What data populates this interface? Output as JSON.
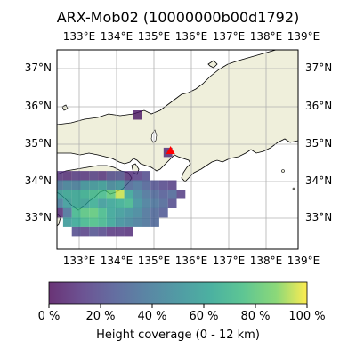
{
  "map": {
    "title": "ARX-Mob02 (10000000b00d1792)",
    "lon_labels": [
      "133°E",
      "134°E",
      "135°E",
      "136°E",
      "137°E",
      "138°E",
      "139°E"
    ],
    "lat_labels": [
      "37°N",
      "36°N",
      "35°N",
      "34°N",
      "33°N"
    ],
    "extent": {
      "lon_min": 132.95,
      "lon_max": 139.85,
      "lat_min": 32.15,
      "lat_max": 37.5
    },
    "colors": {
      "land": "#efefdb",
      "sea": "#ffffff",
      "grid": "#b0b0b0",
      "marker": "#ff0000"
    },
    "marker": {
      "lon": 136.2,
      "lat": 34.8,
      "shape": "triangle"
    },
    "colorbar": {
      "label": "Height coverage (0 - 12 km)",
      "ticks": [
        "0 %",
        "20 %",
        "40 %",
        "60 %",
        "80 %",
        "100 %"
      ],
      "colormap": "viridis"
    },
    "cell_size_deg": 0.25,
    "cells": [
      [
        135.25,
        35.75,
        0.05
      ],
      [
        136.125,
        34.75,
        0.1
      ],
      [
        133,
        34.125,
        0.12
      ],
      [
        133.25,
        34.125,
        0.1
      ],
      [
        133.5,
        34.125,
        0.14
      ],
      [
        133.75,
        34.125,
        0.12
      ],
      [
        134,
        34.125,
        0.15
      ],
      [
        134.25,
        34.125,
        0.12
      ],
      [
        134.5,
        34.125,
        0.2
      ],
      [
        134.75,
        34.125,
        0.22
      ],
      [
        135,
        34.125,
        0.1
      ],
      [
        135.25,
        34.125,
        0.14
      ],
      [
        135.5,
        34.125,
        0.2
      ],
      [
        133,
        33.875,
        0.35
      ],
      [
        133.25,
        33.875,
        0.42
      ],
      [
        133.5,
        33.875,
        0.4
      ],
      [
        133.75,
        33.875,
        0.5
      ],
      [
        134,
        33.875,
        0.52
      ],
      [
        134.25,
        33.875,
        0.55
      ],
      [
        134.5,
        33.875,
        0.45
      ],
      [
        134.75,
        33.875,
        0.5
      ],
      [
        135,
        33.875,
        0.3
      ],
      [
        135.25,
        33.875,
        0.35
      ],
      [
        135.5,
        33.875,
        0.28
      ],
      [
        135.75,
        33.875,
        0.22
      ],
      [
        136,
        33.875,
        0.18
      ],
      [
        136.25,
        33.875,
        0.15
      ],
      [
        133,
        33.625,
        0.55
      ],
      [
        133.25,
        33.625,
        0.6
      ],
      [
        133.5,
        33.625,
        0.6
      ],
      [
        133.75,
        33.625,
        0.65
      ],
      [
        134,
        33.625,
        0.7
      ],
      [
        134.25,
        33.625,
        0.72
      ],
      [
        134.5,
        33.625,
        0.8
      ],
      [
        134.75,
        33.625,
        0.95
      ],
      [
        135,
        33.625,
        0.6
      ],
      [
        135.25,
        33.625,
        0.45
      ],
      [
        135.5,
        33.625,
        0.35
      ],
      [
        135.75,
        33.625,
        0.3
      ],
      [
        136,
        33.625,
        0.25
      ],
      [
        136.25,
        33.625,
        0.3
      ],
      [
        136.5,
        33.625,
        0.15
      ],
      [
        133,
        33.375,
        0.4
      ],
      [
        133.25,
        33.375,
        0.55
      ],
      [
        133.5,
        33.375,
        0.6
      ],
      [
        133.75,
        33.375,
        0.58
      ],
      [
        134,
        33.375,
        0.65
      ],
      [
        134.25,
        33.375,
        0.55
      ],
      [
        134.5,
        33.375,
        0.6
      ],
      [
        134.75,
        33.375,
        0.65
      ],
      [
        135,
        33.375,
        0.7
      ],
      [
        135.25,
        33.375,
        0.5
      ],
      [
        135.5,
        33.375,
        0.4
      ],
      [
        135.75,
        33.375,
        0.35
      ],
      [
        136,
        33.375,
        0.3
      ],
      [
        136.25,
        33.375,
        0.2
      ],
      [
        133,
        33.125,
        0.08
      ],
      [
        133.25,
        33.125,
        0.35
      ],
      [
        133.5,
        33.125,
        0.7
      ],
      [
        133.75,
        33.125,
        0.78
      ],
      [
        134,
        33.125,
        0.8
      ],
      [
        134.25,
        33.125,
        0.72
      ],
      [
        134.5,
        33.125,
        0.6
      ],
      [
        134.75,
        33.125,
        0.55
      ],
      [
        135,
        33.125,
        0.5
      ],
      [
        135.25,
        33.125,
        0.45
      ],
      [
        135.5,
        33.125,
        0.35
      ],
      [
        135.75,
        33.125,
        0.3
      ],
      [
        136,
        33.125,
        0.25
      ],
      [
        133.25,
        32.875,
        0.55
      ],
      [
        133.5,
        32.875,
        0.62
      ],
      [
        133.75,
        32.875,
        0.7
      ],
      [
        134,
        32.875,
        0.75
      ],
      [
        134.25,
        32.875,
        0.7
      ],
      [
        134.5,
        32.875,
        0.6
      ],
      [
        134.75,
        32.875,
        0.5
      ],
      [
        135,
        32.875,
        0.45
      ],
      [
        135.25,
        32.875,
        0.4
      ],
      [
        135.5,
        32.875,
        0.35
      ],
      [
        135.75,
        32.875,
        0.3
      ],
      [
        133.5,
        32.625,
        0.2
      ],
      [
        133.75,
        32.625,
        0.15
      ],
      [
        134,
        32.625,
        0.22
      ],
      [
        134.25,
        32.625,
        0.18
      ],
      [
        134.5,
        32.625,
        0.12
      ],
      [
        134.75,
        32.625,
        0.12
      ],
      [
        135,
        32.625,
        0.1
      ]
    ]
  }
}
